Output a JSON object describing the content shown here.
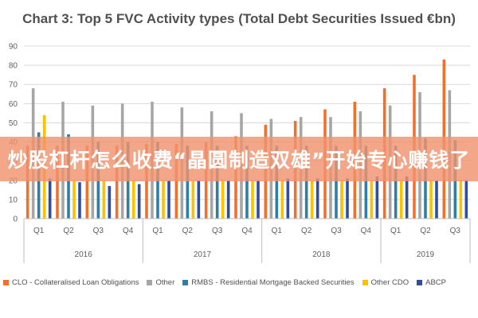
{
  "chart_data": {
    "type": "bar",
    "title": "Chart 3: Top 5 FVC Activity types (Total Debt Securities Issued €bn)",
    "ylim": [
      0,
      90
    ],
    "yticks": [
      0,
      10,
      20,
      30,
      40,
      50,
      60,
      70,
      80,
      90
    ],
    "grid": true,
    "legend_position": "bottom",
    "categories": [
      "Q1",
      "Q2",
      "Q3",
      "Q4",
      "Q1",
      "Q2",
      "Q3",
      "Q4",
      "Q1",
      "Q2",
      "Q3",
      "Q4",
      "Q1",
      "Q2",
      "Q3"
    ],
    "year_groups": [
      {
        "label": "2016",
        "count": 4
      },
      {
        "label": "2017",
        "count": 4
      },
      {
        "label": "2018",
        "count": 4
      },
      {
        "label": "2019",
        "count": 3
      }
    ],
    "series": [
      {
        "name": "CLO - Collateralised Loan Obligations",
        "color": "#f0702d",
        "values": [
          38,
          38,
          38,
          38,
          39,
          39,
          40,
          43,
          49,
          51,
          57,
          61,
          68,
          75,
          83
        ]
      },
      {
        "name": "Other",
        "color": "#a6a6a6",
        "values": [
          68,
          61,
          59,
          60,
          61,
          58,
          56,
          55,
          52,
          53,
          53,
          56,
          59,
          66,
          67
        ]
      },
      {
        "name": "RMBS - Residential Mortgage Backed Securities",
        "color": "#2e7fa6",
        "values": [
          45,
          44,
          40,
          40,
          40,
          38,
          38,
          38,
          38,
          38,
          38,
          38,
          38,
          42,
          41
        ]
      },
      {
        "name": "Other CDO",
        "color": "#ffc000",
        "values": [
          54,
          20,
          20,
          20,
          20,
          20,
          20,
          20,
          20,
          20,
          20,
          20,
          20,
          20,
          20
        ]
      },
      {
        "name": "ABCP",
        "color": "#2f4ea1",
        "values": [
          21,
          19,
          17,
          18,
          20,
          20,
          20,
          20,
          21,
          21,
          21,
          22,
          22,
          20,
          20
        ]
      }
    ]
  },
  "overlay_banner": "炒股杠杆怎么收费“晶圆制造双雄”开始专心赚钱了"
}
